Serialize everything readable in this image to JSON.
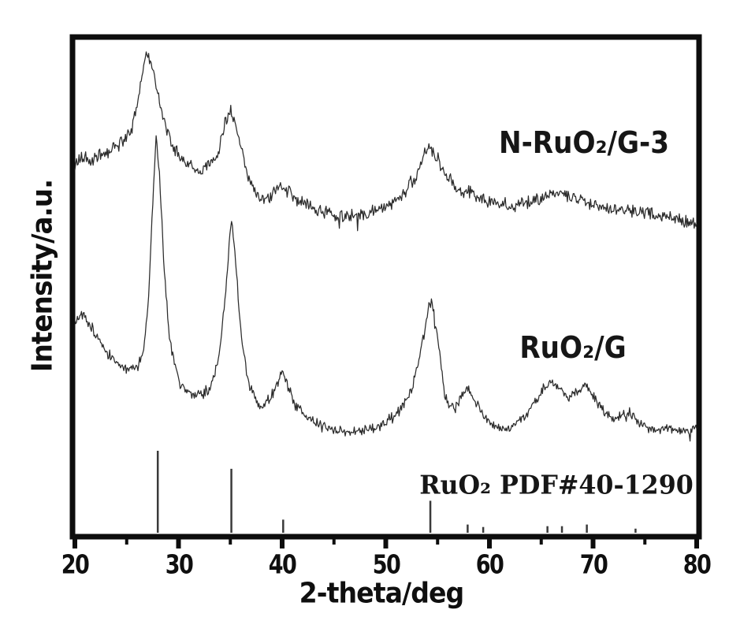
{
  "chart_data": {
    "type": "line",
    "description": "Powder XRD patterns: two noisy diffraction traces offset vertically plus a reference stick pattern. Y axis is arbitrary intensity (no numeric ticks); intensity values below are fractions of full plot height.",
    "xlabel": "2-theta/deg",
    "ylabel": "Intensity/a.u.",
    "xlim": [
      20,
      80
    ],
    "grid": "off",
    "legend_position": "labels drawn next to each trace inside plot",
    "x_ticks": [
      "20",
      "30",
      "40",
      "50",
      "60",
      "70",
      "80"
    ],
    "x_minor_ticks": [
      25,
      35,
      45,
      55,
      65,
      75
    ],
    "series": [
      {
        "name": "N-RuO₂/G-3",
        "kind": "noisy-trace",
        "noise": 0.016,
        "main_peaks_2theta": [
          27.0,
          35.0,
          39.8,
          54.3,
          66.0
        ],
        "points": [
          [
            20,
            0.746
          ],
          [
            20.8,
            0.765
          ],
          [
            21.6,
            0.751
          ],
          [
            22.4,
            0.765
          ],
          [
            23.2,
            0.775
          ],
          [
            24,
            0.784
          ],
          [
            24.8,
            0.797
          ],
          [
            25.6,
            0.825
          ],
          [
            26.2,
            0.892
          ],
          [
            26.8,
            0.965
          ],
          [
            27.1,
            0.971
          ],
          [
            27.5,
            0.937
          ],
          [
            28,
            0.892
          ],
          [
            28.6,
            0.838
          ],
          [
            29.2,
            0.797
          ],
          [
            30,
            0.765
          ],
          [
            31,
            0.743
          ],
          [
            32,
            0.737
          ],
          [
            33,
            0.746
          ],
          [
            33.8,
            0.768
          ],
          [
            34.4,
            0.829
          ],
          [
            35,
            0.857
          ],
          [
            35.4,
            0.838
          ],
          [
            36,
            0.784
          ],
          [
            36.8,
            0.722
          ],
          [
            37.6,
            0.686
          ],
          [
            38.4,
            0.673
          ],
          [
            39.2,
            0.692
          ],
          [
            39.8,
            0.702
          ],
          [
            40.4,
            0.695
          ],
          [
            41.2,
            0.683
          ],
          [
            42,
            0.67
          ],
          [
            43,
            0.66
          ],
          [
            44,
            0.652
          ],
          [
            45,
            0.648
          ],
          [
            46,
            0.644
          ],
          [
            47,
            0.643
          ],
          [
            48,
            0.648
          ],
          [
            49,
            0.654
          ],
          [
            50,
            0.663
          ],
          [
            51,
            0.676
          ],
          [
            52,
            0.695
          ],
          [
            52.8,
            0.717
          ],
          [
            53.6,
            0.762
          ],
          [
            54.3,
            0.781
          ],
          [
            55,
            0.759
          ],
          [
            55.8,
            0.727
          ],
          [
            56.6,
            0.702
          ],
          [
            57.4,
            0.689
          ],
          [
            58,
            0.692
          ],
          [
            58.6,
            0.683
          ],
          [
            59.5,
            0.675
          ],
          [
            60.5,
            0.67
          ],
          [
            61.5,
            0.665
          ],
          [
            62.5,
            0.663
          ],
          [
            63.5,
            0.668
          ],
          [
            64.5,
            0.676
          ],
          [
            65.3,
            0.684
          ],
          [
            66,
            0.687
          ],
          [
            66.8,
            0.686
          ],
          [
            67.6,
            0.681
          ],
          [
            68.5,
            0.676
          ],
          [
            69.5,
            0.67
          ],
          [
            70.5,
            0.665
          ],
          [
            71.5,
            0.66
          ],
          [
            72.5,
            0.657
          ],
          [
            73.5,
            0.654
          ],
          [
            74.5,
            0.651
          ],
          [
            75.5,
            0.648
          ],
          [
            76.5,
            0.644
          ],
          [
            77.5,
            0.64
          ],
          [
            78.5,
            0.635
          ],
          [
            79.2,
            0.63
          ],
          [
            80,
            0.625
          ]
        ]
      },
      {
        "name": "RuO₂/G",
        "kind": "noisy-trace",
        "noise": 0.013,
        "main_peaks_2theta": [
          27.9,
          35.1,
          40.0,
          54.3,
          58.0,
          66.0,
          69.3
        ],
        "points": [
          [
            20,
            0.425
          ],
          [
            20.7,
            0.448
          ],
          [
            21.4,
            0.425
          ],
          [
            22.2,
            0.4
          ],
          [
            23,
            0.368
          ],
          [
            24,
            0.346
          ],
          [
            25,
            0.333
          ],
          [
            26,
            0.34
          ],
          [
            26.6,
            0.362
          ],
          [
            27.1,
            0.476
          ],
          [
            27.5,
            0.667
          ],
          [
            27.85,
            0.8
          ],
          [
            28.2,
            0.714
          ],
          [
            28.6,
            0.54
          ],
          [
            29.1,
            0.4
          ],
          [
            30,
            0.308
          ],
          [
            31,
            0.286
          ],
          [
            32,
            0.281
          ],
          [
            33,
            0.292
          ],
          [
            33.8,
            0.346
          ],
          [
            34.5,
            0.476
          ],
          [
            35.1,
            0.638
          ],
          [
            35.5,
            0.556
          ],
          [
            36,
            0.413
          ],
          [
            36.8,
            0.298
          ],
          [
            37.8,
            0.257
          ],
          [
            38.8,
            0.273
          ],
          [
            39.5,
            0.302
          ],
          [
            40,
            0.327
          ],
          [
            40.6,
            0.294
          ],
          [
            41.4,
            0.257
          ],
          [
            42.5,
            0.238
          ],
          [
            43.5,
            0.222
          ],
          [
            45,
            0.211
          ],
          [
            46.5,
            0.206
          ],
          [
            48,
            0.21
          ],
          [
            49.5,
            0.219
          ],
          [
            51,
            0.241
          ],
          [
            52.3,
            0.278
          ],
          [
            53.3,
            0.357
          ],
          [
            54,
            0.444
          ],
          [
            54.4,
            0.476
          ],
          [
            55,
            0.397
          ],
          [
            55.7,
            0.278
          ],
          [
            56.5,
            0.251
          ],
          [
            57.3,
            0.278
          ],
          [
            58,
            0.298
          ],
          [
            58.7,
            0.267
          ],
          [
            59.6,
            0.235
          ],
          [
            60.6,
            0.216
          ],
          [
            61.6,
            0.213
          ],
          [
            62.8,
            0.225
          ],
          [
            64,
            0.254
          ],
          [
            65.2,
            0.294
          ],
          [
            66,
            0.305
          ],
          [
            66.8,
            0.295
          ],
          [
            67.6,
            0.273
          ],
          [
            68.4,
            0.286
          ],
          [
            69.3,
            0.302
          ],
          [
            70.2,
            0.273
          ],
          [
            71.2,
            0.246
          ],
          [
            72.3,
            0.23
          ],
          [
            73.4,
            0.251
          ],
          [
            74.5,
            0.225
          ],
          [
            75.8,
            0.214
          ],
          [
            77,
            0.211
          ],
          [
            78.5,
            0.21
          ],
          [
            80,
            0.213
          ]
        ]
      },
      {
        "name": "RuO₂ PDF#40-1290",
        "kind": "reference-sticks",
        "peaks": [
          [
            28.0,
            1.0
          ],
          [
            35.1,
            0.78
          ],
          [
            40.1,
            0.16
          ],
          [
            54.3,
            0.39
          ],
          [
            57.9,
            0.1
          ],
          [
            59.4,
            0.07
          ],
          [
            65.6,
            0.08
          ],
          [
            67.0,
            0.08
          ],
          [
            69.4,
            0.1
          ],
          [
            74.1,
            0.05
          ]
        ]
      }
    ]
  },
  "colors": {
    "background": "#ffffff",
    "frame": "#0d0d0d",
    "trace": "#2b2b2b",
    "stick": "#3a3a3a",
    "text": "#111111"
  }
}
